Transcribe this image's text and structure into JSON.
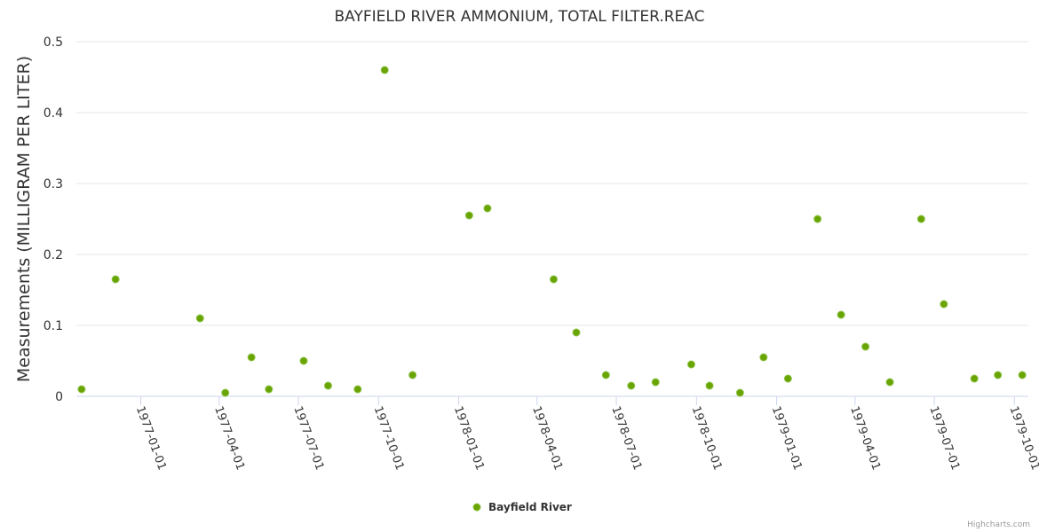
{
  "chart_data": {
    "type": "scatter",
    "title": "BAYFIELD RIVER AMMONIUM, TOTAL FILTER.REAC",
    "ylabel": "Measurements (MILLIGRAM PER LITER)",
    "xlabel": "",
    "ylim": [
      0,
      0.5
    ],
    "yticks": [
      "0",
      "0.1",
      "0.2",
      "0.3",
      "0.4",
      "0.5"
    ],
    "xlim": [
      "1976-10-19",
      "1979-10-17"
    ],
    "xticks": [
      "1977-01-01",
      "1977-04-01",
      "1977-07-01",
      "1977-10-01",
      "1978-01-01",
      "1978-04-01",
      "1978-07-01",
      "1978-10-01",
      "1979-01-01",
      "1979-04-01",
      "1979-07-01",
      "1979-10-01"
    ],
    "grid": true,
    "legend_position": "bottom-center",
    "series": [
      {
        "name": "Bayfield River",
        "color": "#6aa400",
        "points": [
          [
            "1976-10-25",
            0.01
          ],
          [
            "1976-12-03",
            0.165
          ],
          [
            "1977-03-10",
            0.11
          ],
          [
            "1977-04-08",
            0.005
          ],
          [
            "1977-05-08",
            0.055
          ],
          [
            "1977-05-28",
            0.01
          ],
          [
            "1977-07-07",
            0.05
          ],
          [
            "1977-08-04",
            0.015
          ],
          [
            "1977-09-07",
            0.01
          ],
          [
            "1977-10-08",
            0.46
          ],
          [
            "1977-11-09",
            0.03
          ],
          [
            "1978-01-13",
            0.255
          ],
          [
            "1978-02-03",
            0.265
          ],
          [
            "1978-04-20",
            0.165
          ],
          [
            "1978-05-16",
            0.09
          ],
          [
            "1978-06-19",
            0.03
          ],
          [
            "1978-07-18",
            0.015
          ],
          [
            "1978-08-15",
            0.02
          ],
          [
            "1978-09-25",
            0.045
          ],
          [
            "1978-10-16",
            0.015
          ],
          [
            "1978-11-20",
            0.005
          ],
          [
            "1978-12-17",
            0.055
          ],
          [
            "1979-01-14",
            0.025
          ],
          [
            "1979-02-17",
            0.25
          ],
          [
            "1979-03-16",
            0.115
          ],
          [
            "1979-04-13",
            0.07
          ],
          [
            "1979-05-11",
            0.02
          ],
          [
            "1979-06-16",
            0.25
          ],
          [
            "1979-07-12",
            0.13
          ],
          [
            "1979-08-16",
            0.025
          ],
          [
            "1979-09-12",
            0.03
          ],
          [
            "1979-10-10",
            0.03
          ]
        ]
      }
    ]
  },
  "legend": {
    "label": "Bayfield River"
  },
  "credits": "Highcharts.com"
}
